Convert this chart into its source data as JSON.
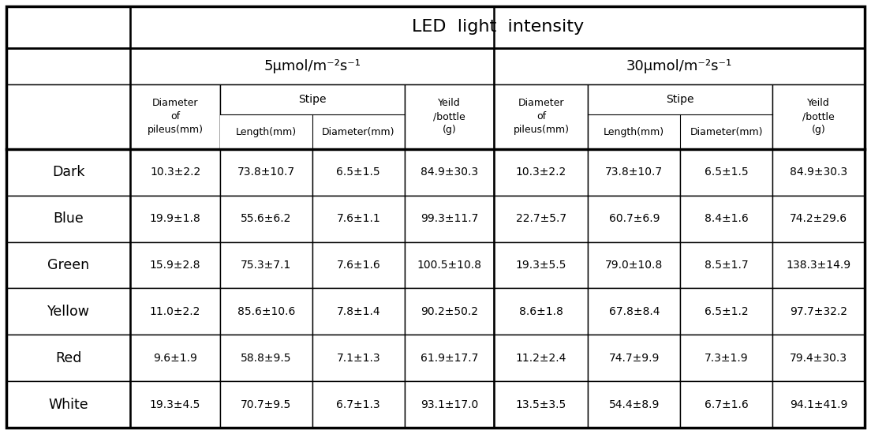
{
  "title": "LED  light  intensity",
  "group1_label": "5μmol/m⁻²s⁻¹",
  "group2_label": "30μmol/m⁻²s⁻¹",
  "stipe_label": "Stipe",
  "row_labels": [
    "Dark",
    "Blue",
    "Green",
    "Yellow",
    "Red",
    "White"
  ],
  "data": [
    [
      "10.3±2.2",
      "73.8±10.7",
      "6.5±1.5",
      "84.9±30.3",
      "10.3±2.2",
      "73.8±10.7",
      "6.5±1.5",
      "84.9±30.3"
    ],
    [
      "19.9±1.8",
      "55.6±6.2",
      "7.6±1.1",
      "99.3±11.7",
      "22.7±5.7",
      "60.7±6.9",
      "8.4±1.6",
      "74.2±29.6"
    ],
    [
      "15.9±2.8",
      "75.3±7.1",
      "7.6±1.6",
      "100.5±10.8",
      "19.3±5.5",
      "79.0±10.8",
      "8.5±1.7",
      "138.3±14.9"
    ],
    [
      "11.0±2.2",
      "85.6±10.6",
      "7.8±1.4",
      "90.2±50.2",
      "8.6±1.8",
      "67.8±8.4",
      "6.5±1.2",
      "97.7±32.2"
    ],
    [
      "9.6±1.9",
      "58.8±9.5",
      "7.1±1.3",
      "61.9±17.7",
      "11.2±2.4",
      "74.7±9.9",
      "7.3±1.9",
      "79.4±30.3"
    ],
    [
      "19.3±4.5",
      "70.7±9.5",
      "6.7±1.3",
      "93.1±17.0",
      "13.5±3.5",
      "54.4±8.9",
      "6.7±1.6",
      "94.1±41.9"
    ]
  ],
  "pileus_header": "Diameter\nof\npileus(mm)",
  "length_header": "Length(mm)",
  "diameter_header": "Diameter(mm)",
  "yeild_header": "Yeild\n/bottle\n(g)",
  "bg_color": "#ffffff"
}
